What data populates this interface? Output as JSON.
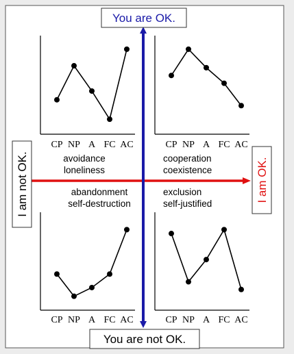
{
  "axis_labels": {
    "top": "You are OK.",
    "bottom": "You are not OK.",
    "left": "I am not OK.",
    "right": "I am OK."
  },
  "quadrants": {
    "top_left": [
      "avoidance",
      "loneliness"
    ],
    "top_right": [
      "cooperation",
      "coexistence"
    ],
    "bottom_left": [
      "abandonment",
      "self-destruction"
    ],
    "bottom_right": [
      "exclusion",
      "self-justified"
    ]
  },
  "colors": {
    "vertical_axis": "#1a1aa8",
    "horizontal_axis": "#e01010",
    "right_label": "#e01010",
    "top_label_text": "#1a1aa8"
  },
  "chart_data": [
    {
      "type": "line",
      "position": "top-left",
      "categories": [
        "CP",
        "NP",
        "A",
        "FC",
        "AC"
      ],
      "values": [
        0.34,
        0.69,
        0.43,
        0.14,
        0.86
      ]
    },
    {
      "type": "line",
      "position": "top-right",
      "categories": [
        "CP",
        "NP",
        "A",
        "FC",
        "AC"
      ],
      "values": [
        0.59,
        0.86,
        0.67,
        0.51,
        0.28
      ]
    },
    {
      "type": "line",
      "position": "bottom-left",
      "categories": [
        "CP",
        "NP",
        "A",
        "FC",
        "AC"
      ],
      "values": [
        0.36,
        0.13,
        0.22,
        0.36,
        0.82
      ]
    },
    {
      "type": "line",
      "position": "bottom-right",
      "categories": [
        "CP",
        "NP",
        "A",
        "FC",
        "AC"
      ],
      "values": [
        0.78,
        0.28,
        0.51,
        0.82,
        0.2
      ]
    }
  ]
}
